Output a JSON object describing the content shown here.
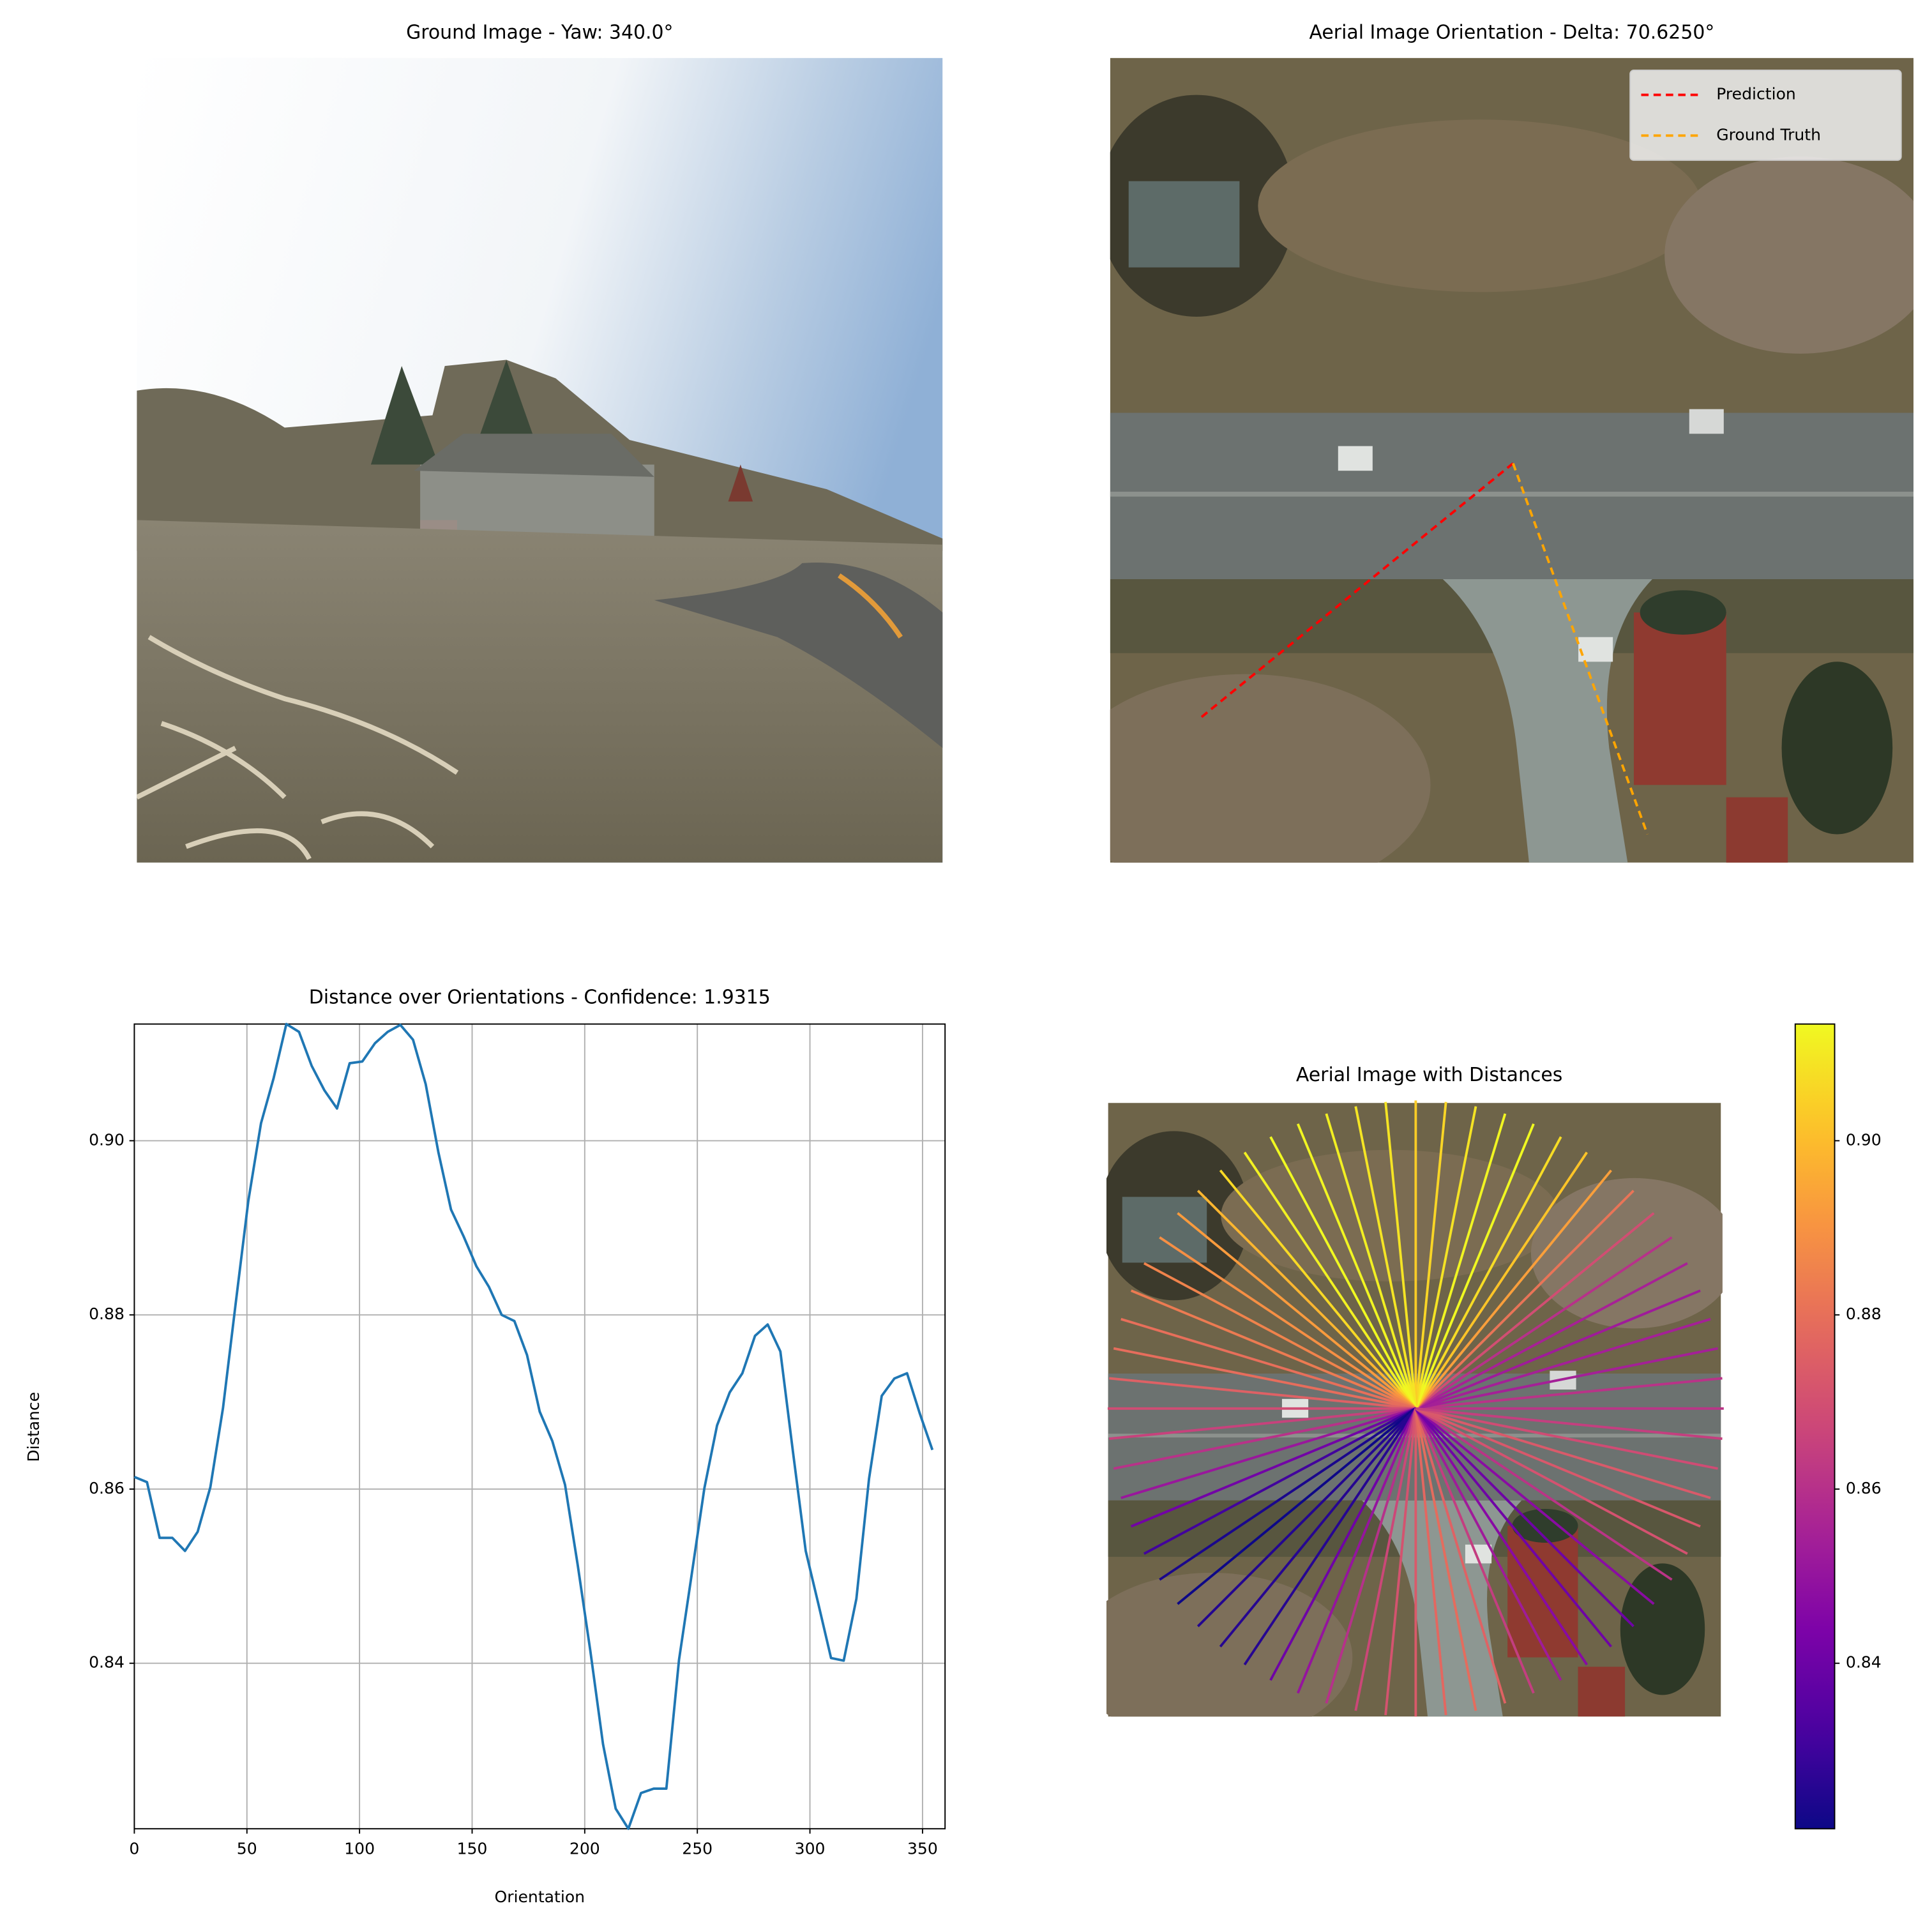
{
  "images": [
    {
      "title": "Ground Image - Yaw: 340.0°"
    },
    {
      "title": "Aerial Image Orientation - Delta: 70.6250°",
      "legend": [
        {
          "name": "Prediction",
          "color": "#ff0000"
        },
        {
          "name": "Ground Truth",
          "color": "#ffa500"
        }
      ]
    }
  ],
  "chart_data": [
    {
      "type": "line",
      "title": "Distance over Orientations - Confidence: 1.9315",
      "x_label": "Orientation",
      "y_label": "Distance",
      "color": "#1f77b4",
      "grid": true,
      "x": [
        0,
        5.625,
        11.25,
        16.875,
        22.5,
        28.125,
        33.75,
        39.375,
        45,
        50.625,
        56.25,
        61.875,
        67.5,
        73.125,
        78.75,
        84.375,
        90,
        95.625,
        101.25,
        106.875,
        112.5,
        118.125,
        123.75,
        129.375,
        135,
        140.625,
        146.25,
        151.875,
        157.5,
        163.125,
        168.75,
        174.375,
        180,
        185.625,
        191.25,
        196.875,
        202.5,
        208.125,
        213.75,
        219.375,
        225,
        230.625,
        236.25,
        241.875,
        247.5,
        253.125,
        258.75,
        264.375,
        270,
        275.625,
        281.25,
        286.875,
        292.5,
        298.125,
        303.75,
        309.375,
        315,
        320.625,
        326.25,
        331.875,
        337.5,
        343.125,
        348.75,
        354.375
      ],
      "values": [
        0.8614,
        0.8608,
        0.8544,
        0.8544,
        0.8529,
        0.8551,
        0.8602,
        0.8693,
        0.8813,
        0.8931,
        0.902,
        0.9072,
        0.9134,
        0.9125,
        0.9086,
        0.9058,
        0.9037,
        0.9089,
        0.9091,
        0.9112,
        0.9125,
        0.9133,
        0.9116,
        0.9065,
        0.8987,
        0.8921,
        0.889,
        0.8856,
        0.8832,
        0.88,
        0.8793,
        0.8754,
        0.8689,
        0.8655,
        0.8605,
        0.8513,
        0.8414,
        0.8307,
        0.8233,
        0.821,
        0.8251,
        0.8256,
        0.8256,
        0.8404,
        0.8502,
        0.8601,
        0.8673,
        0.8711,
        0.8733,
        0.8776,
        0.8789,
        0.8758,
        0.8642,
        0.8529,
        0.8468,
        0.8406,
        0.8403,
        0.8474,
        0.8612,
        0.8707,
        0.8727,
        0.8733,
        0.8687,
        0.8645
      ],
      "xlim": [
        0,
        360
      ],
      "xticks": [
        0,
        50,
        100,
        150,
        200,
        250,
        300,
        350
      ],
      "ylim": [
        0.821,
        0.9134
      ],
      "yticks": [
        0.84,
        0.86,
        0.88,
        {
          "value": 0.9,
          "label": "0.90"
        }
      ]
    },
    {
      "type": "radial",
      "title": "Aerial Image with Distances",
      "colormap": "plasma",
      "x": [
        0,
        5.625,
        11.25,
        16.875,
        22.5,
        28.125,
        33.75,
        39.375,
        45,
        50.625,
        56.25,
        61.875,
        67.5,
        73.125,
        78.75,
        84.375,
        90,
        95.625,
        101.25,
        106.875,
        112.5,
        118.125,
        123.75,
        129.375,
        135,
        140.625,
        146.25,
        151.875,
        157.5,
        163.125,
        168.75,
        174.375,
        180,
        185.625,
        191.25,
        196.875,
        202.5,
        208.125,
        213.75,
        219.375,
        225,
        230.625,
        236.25,
        241.875,
        247.5,
        253.125,
        258.75,
        264.375,
        270,
        275.625,
        281.25,
        286.875,
        292.5,
        298.125,
        303.75,
        309.375,
        315,
        320.625,
        326.25,
        331.875,
        337.5,
        343.125,
        348.75,
        354.375
      ],
      "values": [
        0.8614,
        0.8608,
        0.8544,
        0.8544,
        0.8529,
        0.8551,
        0.8602,
        0.8693,
        0.8813,
        0.8931,
        0.902,
        0.9072,
        0.9134,
        0.9125,
        0.9086,
        0.9058,
        0.9037,
        0.9089,
        0.9091,
        0.9112,
        0.9125,
        0.9133,
        0.9116,
        0.9065,
        0.8987,
        0.8921,
        0.889,
        0.8856,
        0.8832,
        0.88,
        0.8793,
        0.8754,
        0.8689,
        0.8655,
        0.8605,
        0.8513,
        0.8414,
        0.8307,
        0.8233,
        0.821,
        0.8251,
        0.8256,
        0.8256,
        0.8404,
        0.8502,
        0.8601,
        0.8673,
        0.8711,
        0.8733,
        0.8776,
        0.8789,
        0.8758,
        0.8642,
        0.8529,
        0.8468,
        0.8406,
        0.8403,
        0.8474,
        0.8612,
        0.8707,
        0.8727,
        0.8733,
        0.8687,
        0.8645
      ],
      "ylim": [
        0.821,
        0.9134
      ],
      "yticks": [
        0.84,
        0.86,
        0.88,
        {
          "value": 0.9,
          "label": "0.90"
        }
      ]
    }
  ]
}
